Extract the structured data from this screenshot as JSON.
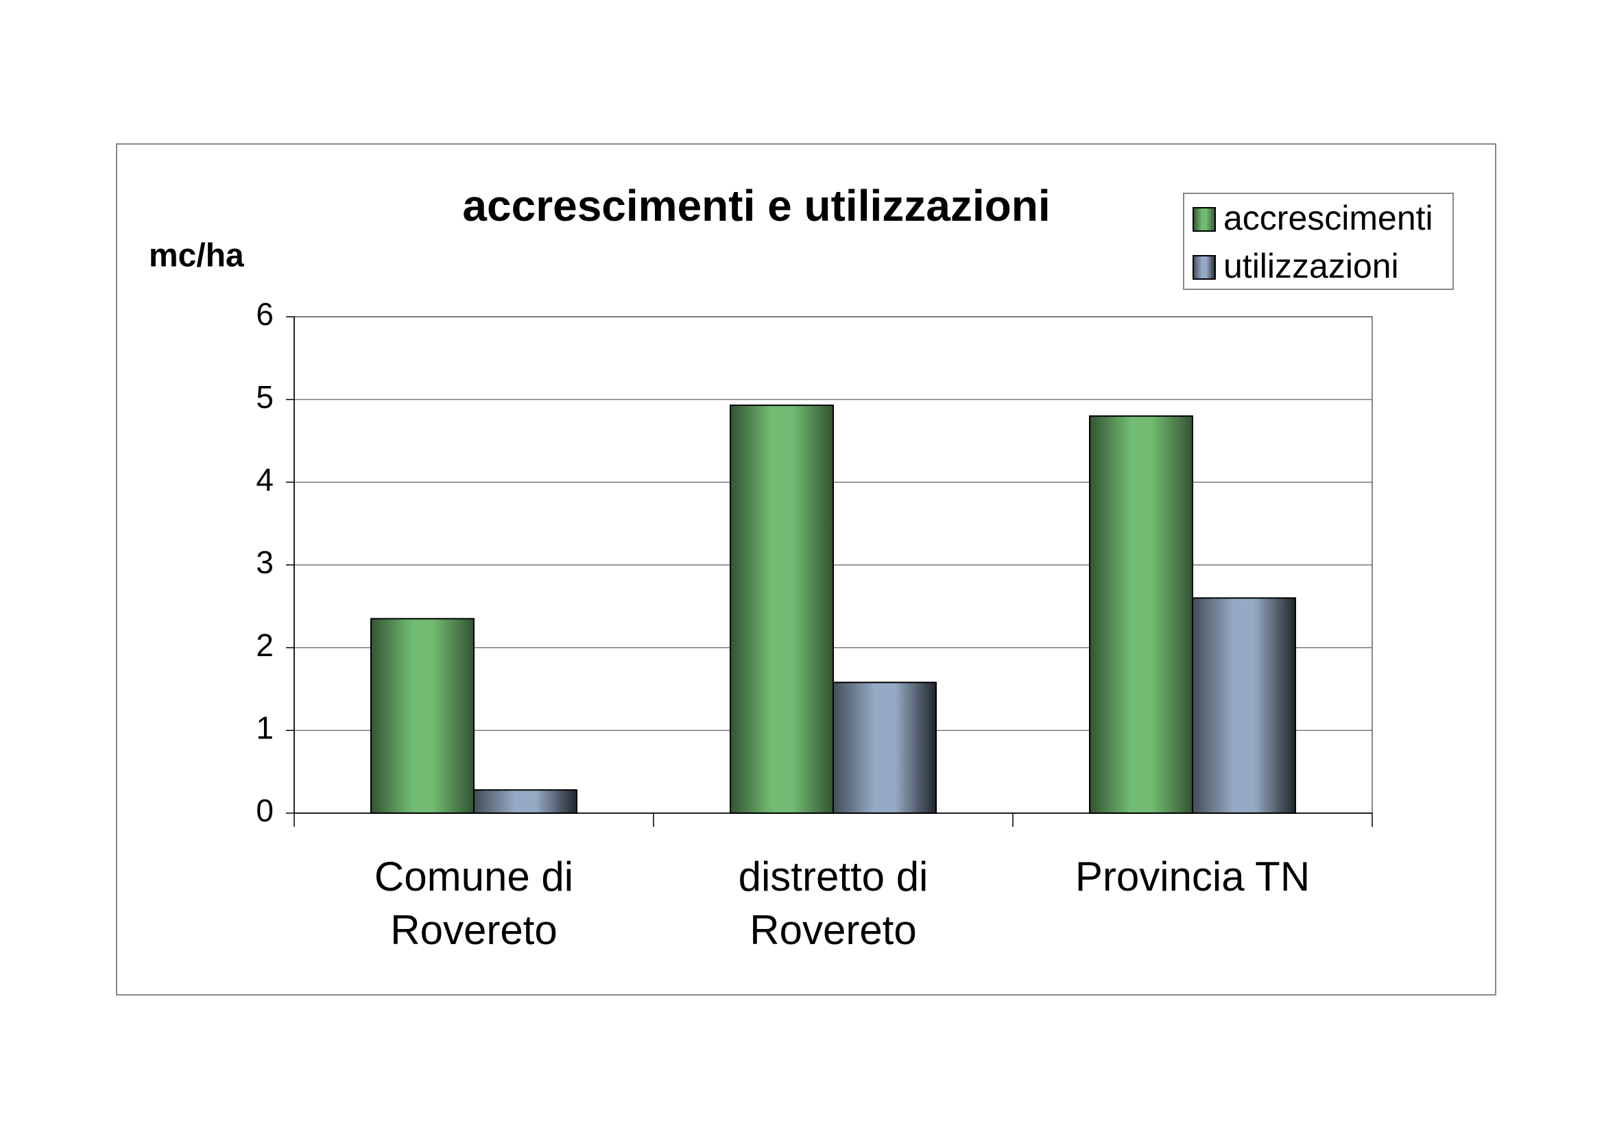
{
  "chart_data": {
    "type": "bar",
    "title": "accrescimenti e utilizzazioni",
    "y_label": "mc/ha",
    "categories": [
      "Comune di Rovereto",
      "distretto di Rovereto",
      "Provincia TN"
    ],
    "series": [
      {
        "name": "accrescimenti",
        "color": "#72bb72",
        "values": [
          2.35,
          4.93,
          4.8
        ]
      },
      {
        "name": "utilizzazioni",
        "color": "#95aac4",
        "values": [
          0.28,
          1.58,
          2.6
        ]
      }
    ],
    "ylim": [
      0,
      6
    ],
    "yticks": [
      0,
      1,
      2,
      3,
      4,
      5,
      6
    ],
    "grid": true,
    "legend": "top-right"
  }
}
